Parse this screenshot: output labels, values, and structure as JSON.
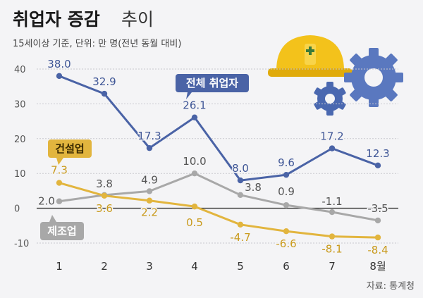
{
  "header": {
    "title_bold": "취업자 증감",
    "title_light": "추이",
    "subtitle": "15세이상 기준, 단위: 만 명(전년 동월 대비)"
  },
  "source": "자료: 통계청",
  "illustration": {
    "icon": "hard-hat-and-gears"
  },
  "chart_data": {
    "type": "line",
    "title": "취업자 증감 추이",
    "subtitle": "15세이상 기준, 단위: 만 명(전년 동월 대비)",
    "x": [
      1,
      2,
      3,
      4,
      5,
      6,
      7,
      8
    ],
    "x_tick_labels": [
      "1",
      "2",
      "3",
      "4",
      "5",
      "6",
      "7",
      "8월"
    ],
    "ylim": [
      -10,
      40
    ],
    "y_ticks": [
      -10,
      0,
      10,
      20,
      30,
      40
    ],
    "y_tick_labels": [
      "-10",
      "0",
      "10",
      "20",
      "30",
      "40"
    ],
    "grid": true,
    "series": [
      {
        "name": "전체 취업자",
        "color": "#4a63a6",
        "label_color": "#3f5696",
        "values": [
          38.0,
          32.9,
          17.3,
          26.1,
          8.0,
          9.6,
          17.2,
          12.3
        ],
        "labels": [
          "38.0",
          "32.9",
          "17.3",
          "26.1",
          "8.0",
          "9.6",
          "17.2",
          "12.3"
        ]
      },
      {
        "name": "제조업",
        "color": "#a8a8a8",
        "label_color": "#555555",
        "values": [
          2.0,
          3.8,
          4.9,
          10.0,
          3.8,
          0.9,
          -1.1,
          -3.5
        ],
        "labels": [
          "2.0",
          "3.8",
          "4.9",
          "10.0",
          "3.8",
          "0.9",
          "-1.1",
          "-3.5"
        ]
      },
      {
        "name": "건설업",
        "color": "#e2b53e",
        "label_color": "#c99a1c",
        "values": [
          7.3,
          3.6,
          2.2,
          0.5,
          -4.7,
          -6.6,
          -8.1,
          -8.4
        ],
        "labels": [
          "7.3",
          "3.6",
          "2.2",
          "0.5",
          "-4.7",
          "-6.6",
          "-8.1",
          "-8.4"
        ]
      }
    ]
  }
}
